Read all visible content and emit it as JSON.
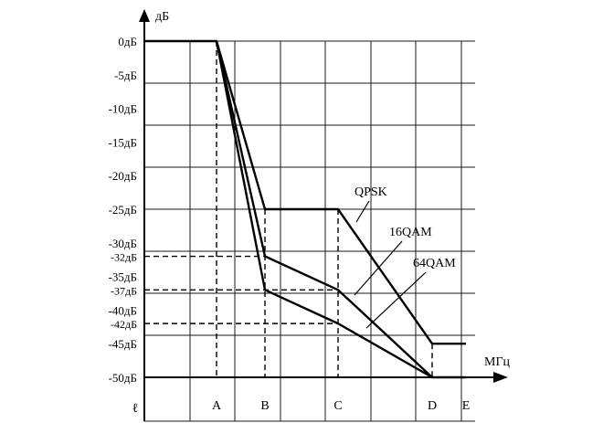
{
  "chart_data": {
    "type": "line",
    "y_unit": "дБ",
    "x_unit": "МГц",
    "origin_label": "ℓ",
    "ylim": [
      -50,
      0
    ],
    "y_ticks": [
      {
        "value": 0,
        "label": "0дБ"
      },
      {
        "value": -5,
        "label": "-5дБ"
      },
      {
        "value": -10,
        "label": "-10дБ"
      },
      {
        "value": -15,
        "label": "-15дБ"
      },
      {
        "value": -20,
        "label": "-20дБ"
      },
      {
        "value": -25,
        "label": "-25дБ"
      },
      {
        "value": -30,
        "label": "-30дБ"
      },
      {
        "value": -32,
        "label": "-32дБ",
        "small": true
      },
      {
        "value": -35,
        "label": "-35дБ"
      },
      {
        "value": -37,
        "label": "-37дБ",
        "small": true
      },
      {
        "value": -40,
        "label": "-40дБ"
      },
      {
        "value": -42,
        "label": "-42дБ",
        "small": true
      },
      {
        "value": -45,
        "label": "-45дБ"
      },
      {
        "value": -50,
        "label": "-50дБ"
      }
    ],
    "x_ticks": [
      {
        "key": "A",
        "label": "A"
      },
      {
        "key": "B",
        "label": "B"
      },
      {
        "key": "C",
        "label": "C"
      },
      {
        "key": "D",
        "label": "D"
      },
      {
        "key": "E",
        "label": "E"
      }
    ],
    "series": [
      {
        "name": "QPSK",
        "points": [
          [
            "start",
            0
          ],
          [
            "A",
            0
          ],
          [
            "B",
            -25
          ],
          [
            "C",
            -25
          ],
          [
            "D",
            -45
          ],
          [
            "E",
            -45
          ]
        ]
      },
      {
        "name": "16QAM",
        "points": [
          [
            "A",
            0
          ],
          [
            "B",
            -32
          ],
          [
            "C",
            -37
          ],
          [
            "D",
            -50
          ]
        ]
      },
      {
        "name": "64QAM",
        "points": [
          [
            "A",
            0
          ],
          [
            "B",
            -37
          ],
          [
            "C",
            -42
          ],
          [
            "D",
            -50
          ],
          [
            "E",
            -50
          ]
        ]
      }
    ],
    "reference_lines": [
      {
        "x": "A",
        "from": 0,
        "to": -50
      },
      {
        "x": "B",
        "from": -25,
        "to": -50
      },
      {
        "x": "C",
        "from": -25,
        "to": -50
      },
      {
        "x": "D",
        "from": -45,
        "to": -50
      },
      {
        "y": -32,
        "from": "start",
        "to": "B"
      },
      {
        "y": -37,
        "from": "start",
        "to": "C"
      },
      {
        "y": -42,
        "from": "start",
        "to": "C"
      }
    ],
    "grid": true
  }
}
